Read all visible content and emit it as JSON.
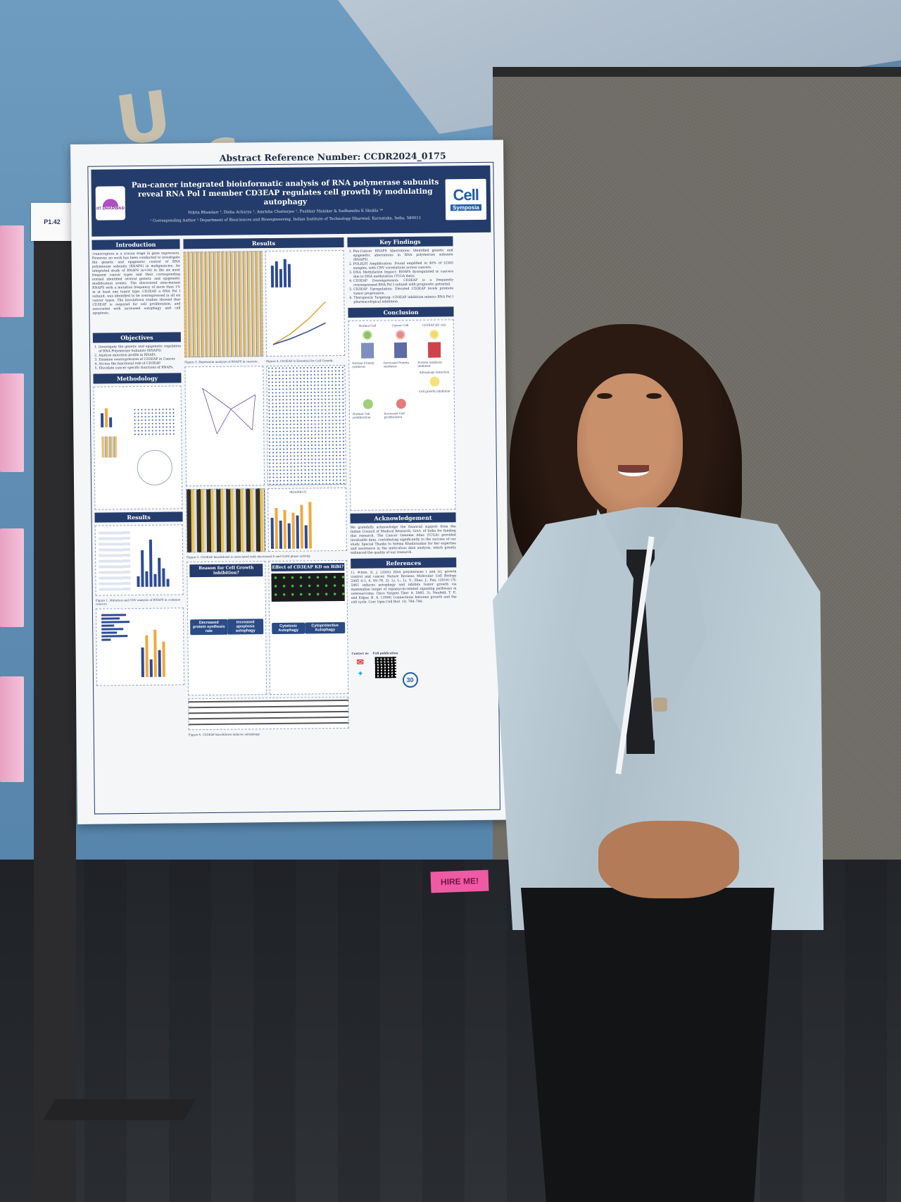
{
  "scene": {
    "wall_letters": [
      "U",
      "G"
    ],
    "poster_number_tag": "P1.42",
    "hire_sign": "HIRE ME!"
  },
  "poster": {
    "reference": "Abstract Reference Number: CCDR2024_0175",
    "title": "Pan-cancer integrated bioinformatic analysis of RNA polymerase subunits reveal RNA Pol I member CD3EAP regulates cell growth by modulating autophagy",
    "authors": "Nikita Bhandari ¹, Disha Acharya ¹, Amrisha Chatterjee ¹, Pushkar Malakar & Sudhanshu K Shukla ¹*",
    "affiliation": "¹ Corresponding Author ¹ Department of Biosciences and Bioengineering, Indian Institute of Technology Dharwad, Karnataka, India, 580011",
    "institute_logo_text": "IIT DHARWAD",
    "sponsor_logo": {
      "main": "Cell",
      "sub": "Symposia"
    },
    "sections": {
      "introduction": "Introduction",
      "objectives": "Objectives",
      "methodology": "Methodology",
      "results_left": "Results",
      "results_mid": "Results",
      "key_findings": "Key Findings",
      "conclusion": "Conclusion",
      "acknowledgement": "Acknowledgement",
      "references": "References",
      "reason_box": "Reason for Cell Growth inhibition?",
      "effect_box": "Effect of CD3EAP KD on RiBi?"
    },
    "objectives_list": [
      "Investigate the genetic and epigenetic regulation of RNA Polymerase Subunits (RNAPS)",
      "Analyze mutation profile in RNAPs",
      "Examine overexpression of CD3EAP in Cancer.",
      "Access the functional role of CD3EAP",
      "Elucidate cancer specific functions of RNAPs."
    ],
    "key_findings_list": [
      "Pan-Cancer RNAPS Aberrations: Identified genetic and epigenetic aberrations in RNA polymerase subunits (RNAPS).",
      "POLR2H Amplification: Found amplified in 40% of LUAD samples, with CNV correlations across cancers.",
      "DNA Methylation Impact: RNAPS dysregulated in cancers due to DNA methylation (TCGA data).",
      "CD3EAP Overexpression: CD3EAP is a frequently overexpressed RNA Pol I subunit with prognostic potential.",
      "CD3EAP Upregulation: Elevated CD3EAP levels promote tumor progression.",
      "Therapeutic Targeting: CD3EAP inhibition mimics RNA Pol I pharmacological inhibition."
    ],
    "conclusion_labels": {
      "normal": "Normal Cell",
      "cancer": "Cancer Cell",
      "kd": "CD3EAP KD cell",
      "normal_protein": "Normal Protein synthesis",
      "increased_protein": "Increased Protein synthesis",
      "inhibited_protein": "Protein synthesis inhibited",
      "autophagy": "Autophagy Induction",
      "normal_prolif": "Normal Cell proliferation",
      "increased_prolif": "Increased Cell proliferation",
      "growth_inhib": "Cell growth inhibition"
    },
    "pills": {
      "decreased_protein": "Decreased protein synthesis rate",
      "increased_apoptosis": "Increased apoptosis autophagy",
      "cytotoxic": "Cytotoxic Autophagy",
      "cytoprotective": "Cytoprotective Autophagy"
    },
    "acknowledgement_text": "We gratefully acknowledge the financial support from the Indian Council of Medical Research, Govt. of India for funding this research. The Cancer Genome Atlas (TCGA) provided invaluable data, contributing significantly to the success of our study. Special Thanks to Seema Khadirnaikar for her expertise and assistance in the meticulous data analysis, which greatly enhanced the quality of our research.",
    "references_text": "1). White, R. J. (2005) RNA polymerases I and III, growth control and cancer. Nature Reviews Molecular Cell Biology 2005 6:1, 6, 69–78. 2). Li, L., Li, Y., Zhao, J., Fan, (2016) CX-5461 induces autophagy and inhibits tumor growth via mammalian target of rapamycin-related signaling pathways in osteosarcoma. Onco Targets Ther. 9, 5985. 3). Neufeld, T. P., and Edgar, B. A. (1998) Connections between growth and the cell cycle. Curr Opin Cell Biol. 10, 784–790.",
    "contact": {
      "label": "Contact us",
      "publication": "Full publication",
      "count": "30"
    },
    "intro_text": "Transcription is a crucial stage in gene expression. However, no work has been conducted to investigate the genetic and epigenetic control of RNA polymerase subunits (RNAPS) in malignancies. An integrated study of RNAPS (n=34) in the six most frequent cancer types and their corresponding normal identified several genetic and epigenetic modification events. The discovered nine-mutant RNAPS with a mutation frequency of more than 1% in at least one tumor type. CD3EAP, a RNA Pol I subunit, was identified to be overexpressed in all six cancer types. The knockdown studies showed that CD3EAP is required for cell proliferation, and associated with increased autophagy and cell apoptosis.",
    "fig_captions": {
      "f1": "Figure 1. Mutation and CNV analysis of RNAPS in common cancers",
      "f3": "Figure 3. Expression analysis of RNAPS in cancers.",
      "f4": "Figure 4. CD3EAP is Essential for Cell Growth.",
      "f5": "Figure 5. CD3EAP knockdown is associated with decreased S and G2/M phase activity.",
      "f6": "Figure 6. CD3EAP knockdown induces autophagy.",
      "mda": "MDAMB231"
    }
  }
}
